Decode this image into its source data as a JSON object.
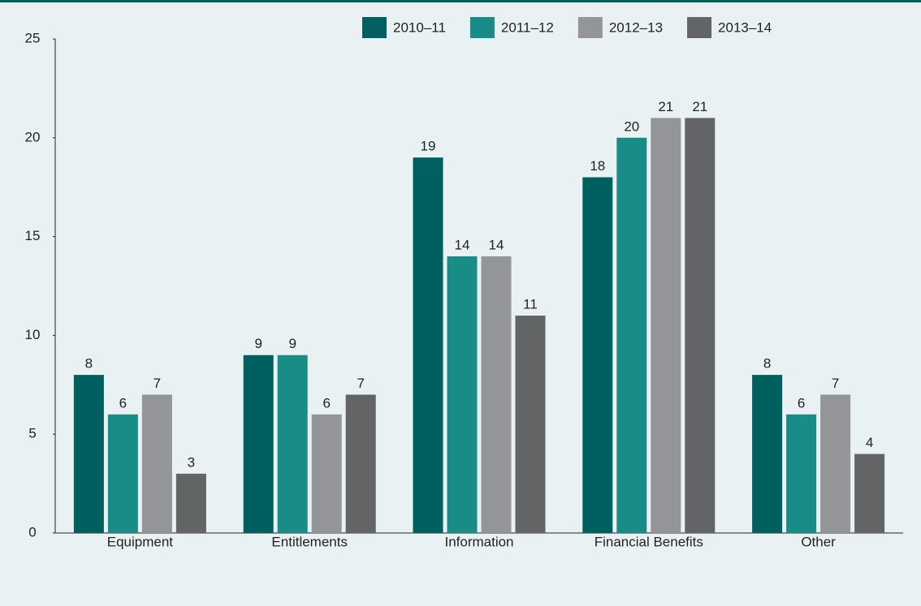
{
  "chart_data": {
    "type": "bar",
    "categories": [
      "Equipment",
      "Entitlements",
      "Information",
      "Financial Benefits",
      "Other"
    ],
    "series": [
      {
        "name": "2010–11",
        "color": "#005f5f",
        "values": [
          8,
          9,
          19,
          18,
          8
        ]
      },
      {
        "name": "2011–12",
        "color": "#1a8c87",
        "values": [
          6,
          9,
          14,
          20,
          6
        ]
      },
      {
        "name": "2012–13",
        "color": "#939598",
        "values": [
          7,
          6,
          14,
          21,
          7
        ]
      },
      {
        "name": "2013–14",
        "color": "#636466",
        "values": [
          3,
          7,
          11,
          21,
          4
        ]
      }
    ],
    "ylim": [
      0,
      25
    ],
    "yticks": [
      0,
      5,
      10,
      15,
      20,
      25
    ],
    "grid": false,
    "legend": "top"
  }
}
